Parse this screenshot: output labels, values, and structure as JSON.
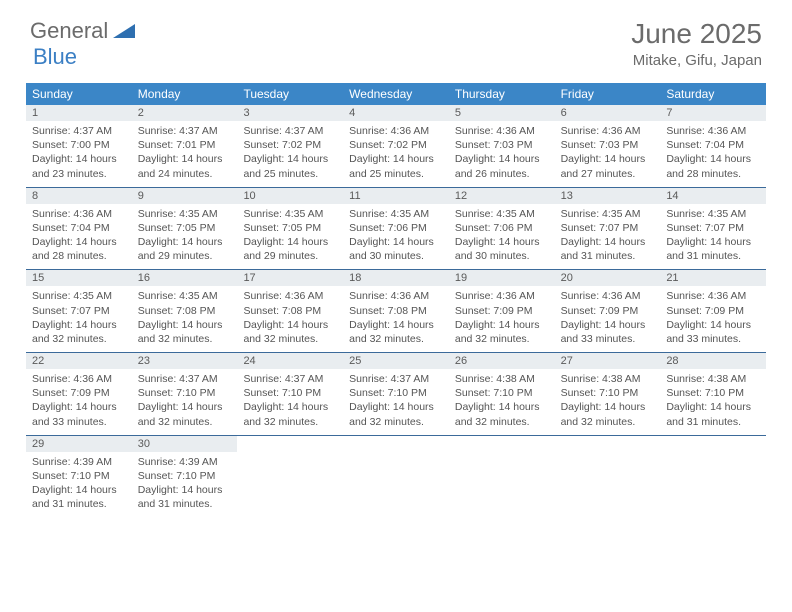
{
  "brand": {
    "part1": "General",
    "part2": "Blue"
  },
  "title": "June 2025",
  "location": "Mitake, Gifu, Japan",
  "colors": {
    "header_bg": "#3b86c7",
    "header_text": "#ffffff",
    "daynum_bg": "#e9edf0",
    "rule": "#3b6a9a",
    "text": "#555555",
    "brand_blue": "#3b7fc4"
  },
  "dow": [
    "Sunday",
    "Monday",
    "Tuesday",
    "Wednesday",
    "Thursday",
    "Friday",
    "Saturday"
  ],
  "weeks": [
    [
      {
        "n": "1",
        "sr": "Sunrise: 4:37 AM",
        "ss": "Sunset: 7:00 PM",
        "d1": "Daylight: 14 hours",
        "d2": "and 23 minutes."
      },
      {
        "n": "2",
        "sr": "Sunrise: 4:37 AM",
        "ss": "Sunset: 7:01 PM",
        "d1": "Daylight: 14 hours",
        "d2": "and 24 minutes."
      },
      {
        "n": "3",
        "sr": "Sunrise: 4:37 AM",
        "ss": "Sunset: 7:02 PM",
        "d1": "Daylight: 14 hours",
        "d2": "and 25 minutes."
      },
      {
        "n": "4",
        "sr": "Sunrise: 4:36 AM",
        "ss": "Sunset: 7:02 PM",
        "d1": "Daylight: 14 hours",
        "d2": "and 25 minutes."
      },
      {
        "n": "5",
        "sr": "Sunrise: 4:36 AM",
        "ss": "Sunset: 7:03 PM",
        "d1": "Daylight: 14 hours",
        "d2": "and 26 minutes."
      },
      {
        "n": "6",
        "sr": "Sunrise: 4:36 AM",
        "ss": "Sunset: 7:03 PM",
        "d1": "Daylight: 14 hours",
        "d2": "and 27 minutes."
      },
      {
        "n": "7",
        "sr": "Sunrise: 4:36 AM",
        "ss": "Sunset: 7:04 PM",
        "d1": "Daylight: 14 hours",
        "d2": "and 28 minutes."
      }
    ],
    [
      {
        "n": "8",
        "sr": "Sunrise: 4:36 AM",
        "ss": "Sunset: 7:04 PM",
        "d1": "Daylight: 14 hours",
        "d2": "and 28 minutes."
      },
      {
        "n": "9",
        "sr": "Sunrise: 4:35 AM",
        "ss": "Sunset: 7:05 PM",
        "d1": "Daylight: 14 hours",
        "d2": "and 29 minutes."
      },
      {
        "n": "10",
        "sr": "Sunrise: 4:35 AM",
        "ss": "Sunset: 7:05 PM",
        "d1": "Daylight: 14 hours",
        "d2": "and 29 minutes."
      },
      {
        "n": "11",
        "sr": "Sunrise: 4:35 AM",
        "ss": "Sunset: 7:06 PM",
        "d1": "Daylight: 14 hours",
        "d2": "and 30 minutes."
      },
      {
        "n": "12",
        "sr": "Sunrise: 4:35 AM",
        "ss": "Sunset: 7:06 PM",
        "d1": "Daylight: 14 hours",
        "d2": "and 30 minutes."
      },
      {
        "n": "13",
        "sr": "Sunrise: 4:35 AM",
        "ss": "Sunset: 7:07 PM",
        "d1": "Daylight: 14 hours",
        "d2": "and 31 minutes."
      },
      {
        "n": "14",
        "sr": "Sunrise: 4:35 AM",
        "ss": "Sunset: 7:07 PM",
        "d1": "Daylight: 14 hours",
        "d2": "and 31 minutes."
      }
    ],
    [
      {
        "n": "15",
        "sr": "Sunrise: 4:35 AM",
        "ss": "Sunset: 7:07 PM",
        "d1": "Daylight: 14 hours",
        "d2": "and 32 minutes."
      },
      {
        "n": "16",
        "sr": "Sunrise: 4:35 AM",
        "ss": "Sunset: 7:08 PM",
        "d1": "Daylight: 14 hours",
        "d2": "and 32 minutes."
      },
      {
        "n": "17",
        "sr": "Sunrise: 4:36 AM",
        "ss": "Sunset: 7:08 PM",
        "d1": "Daylight: 14 hours",
        "d2": "and 32 minutes."
      },
      {
        "n": "18",
        "sr": "Sunrise: 4:36 AM",
        "ss": "Sunset: 7:08 PM",
        "d1": "Daylight: 14 hours",
        "d2": "and 32 minutes."
      },
      {
        "n": "19",
        "sr": "Sunrise: 4:36 AM",
        "ss": "Sunset: 7:09 PM",
        "d1": "Daylight: 14 hours",
        "d2": "and 32 minutes."
      },
      {
        "n": "20",
        "sr": "Sunrise: 4:36 AM",
        "ss": "Sunset: 7:09 PM",
        "d1": "Daylight: 14 hours",
        "d2": "and 33 minutes."
      },
      {
        "n": "21",
        "sr": "Sunrise: 4:36 AM",
        "ss": "Sunset: 7:09 PM",
        "d1": "Daylight: 14 hours",
        "d2": "and 33 minutes."
      }
    ],
    [
      {
        "n": "22",
        "sr": "Sunrise: 4:36 AM",
        "ss": "Sunset: 7:09 PM",
        "d1": "Daylight: 14 hours",
        "d2": "and 33 minutes."
      },
      {
        "n": "23",
        "sr": "Sunrise: 4:37 AM",
        "ss": "Sunset: 7:10 PM",
        "d1": "Daylight: 14 hours",
        "d2": "and 32 minutes."
      },
      {
        "n": "24",
        "sr": "Sunrise: 4:37 AM",
        "ss": "Sunset: 7:10 PM",
        "d1": "Daylight: 14 hours",
        "d2": "and 32 minutes."
      },
      {
        "n": "25",
        "sr": "Sunrise: 4:37 AM",
        "ss": "Sunset: 7:10 PM",
        "d1": "Daylight: 14 hours",
        "d2": "and 32 minutes."
      },
      {
        "n": "26",
        "sr": "Sunrise: 4:38 AM",
        "ss": "Sunset: 7:10 PM",
        "d1": "Daylight: 14 hours",
        "d2": "and 32 minutes."
      },
      {
        "n": "27",
        "sr": "Sunrise: 4:38 AM",
        "ss": "Sunset: 7:10 PM",
        "d1": "Daylight: 14 hours",
        "d2": "and 32 minutes."
      },
      {
        "n": "28",
        "sr": "Sunrise: 4:38 AM",
        "ss": "Sunset: 7:10 PM",
        "d1": "Daylight: 14 hours",
        "d2": "and 31 minutes."
      }
    ],
    [
      {
        "n": "29",
        "sr": "Sunrise: 4:39 AM",
        "ss": "Sunset: 7:10 PM",
        "d1": "Daylight: 14 hours",
        "d2": "and 31 minutes."
      },
      {
        "n": "30",
        "sr": "Sunrise: 4:39 AM",
        "ss": "Sunset: 7:10 PM",
        "d1": "Daylight: 14 hours",
        "d2": "and 31 minutes."
      },
      null,
      null,
      null,
      null,
      null
    ]
  ]
}
